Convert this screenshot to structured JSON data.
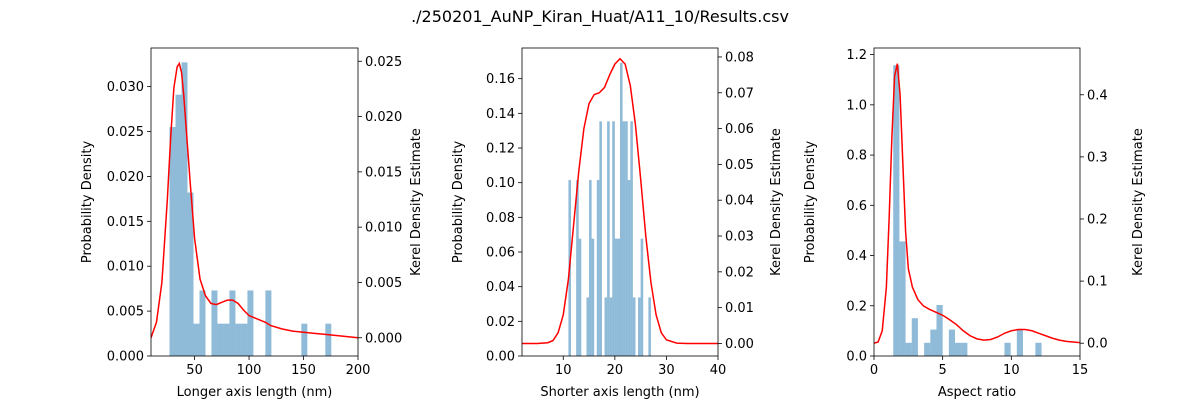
{
  "figure_title": "./250201_AuNP_Kiran_Huat/A11_10/Results.csv",
  "colors": {
    "hist": "#1f77b4",
    "hist_alpha": 0.5,
    "kde": "#ff0000",
    "axis": "#000000"
  },
  "chart_data": [
    {
      "type": "bar",
      "subtype": "histogram_with_kde",
      "xlabel": "Longer axis length (nm)",
      "ylabel": "Probability Density",
      "ylabel_right": "Kerel Density Estimate",
      "xlim": [
        10,
        200
      ],
      "ylim": [
        0,
        0.0343
      ],
      "ylim_right": [
        -0.00165,
        0.0262
      ],
      "xticks": [
        50,
        100,
        150,
        200
      ],
      "yticks": [
        0.0,
        0.005,
        0.01,
        0.015,
        0.02,
        0.025,
        0.03
      ],
      "yticks_right": [
        0.0,
        0.005,
        0.01,
        0.015,
        0.02,
        0.025
      ],
      "ytick_labels": [
        "0.000",
        "0.005",
        "0.010",
        "0.015",
        "0.020",
        "0.025",
        "0.030"
      ],
      "ytick_labels_right": [
        "0.000",
        "0.005",
        "0.010",
        "0.015",
        "0.020",
        "0.025"
      ],
      "bins": [
        {
          "x0": 27,
          "x1": 32.5,
          "y": 0.0255
        },
        {
          "x0": 32.5,
          "x1": 38,
          "y": 0.0291
        },
        {
          "x0": 38,
          "x1": 43.5,
          "y": 0.0327
        },
        {
          "x0": 43.5,
          "x1": 49,
          "y": 0.0182
        },
        {
          "x0": 49,
          "x1": 54.5,
          "y": 0.0036
        },
        {
          "x0": 54.5,
          "x1": 60,
          "y": 0.0073
        },
        {
          "x0": 65.5,
          "x1": 71,
          "y": 0.0073
        },
        {
          "x0": 71,
          "x1": 76.5,
          "y": 0.0036
        },
        {
          "x0": 76.5,
          "x1": 82,
          "y": 0.0036
        },
        {
          "x0": 82,
          "x1": 87.5,
          "y": 0.0073
        },
        {
          "x0": 87.5,
          "x1": 93,
          "y": 0.0036
        },
        {
          "x0": 93,
          "x1": 98.5,
          "y": 0.0036
        },
        {
          "x0": 98.5,
          "x1": 104,
          "y": 0.0073
        },
        {
          "x0": 115,
          "x1": 120.5,
          "y": 0.0073
        },
        {
          "x0": 148,
          "x1": 153.5,
          "y": 0.0036
        },
        {
          "x0": 170,
          "x1": 175.5,
          "y": 0.0036
        }
      ],
      "kde": {
        "x": [
          10,
          15,
          20,
          25,
          28,
          31,
          34,
          36,
          38,
          40,
          43,
          46,
          50,
          55,
          60,
          65,
          70,
          75,
          80,
          85,
          90,
          95,
          100,
          105,
          110,
          115,
          120,
          130,
          140,
          150,
          160,
          170,
          180,
          190,
          200
        ],
        "y": [
          0.0,
          0.0014,
          0.005,
          0.0125,
          0.018,
          0.0226,
          0.0245,
          0.0248,
          0.024,
          0.022,
          0.018,
          0.014,
          0.009,
          0.0053,
          0.0038,
          0.0031,
          0.003,
          0.0032,
          0.0034,
          0.0034,
          0.0031,
          0.0025,
          0.002,
          0.0018,
          0.0016,
          0.0014,
          0.0011,
          0.0008,
          0.0006,
          0.0005,
          0.0004,
          0.0003,
          0.0002,
          0.0001,
          0.0
        ]
      }
    },
    {
      "type": "bar",
      "subtype": "histogram_with_kde",
      "xlabel": "Shorter axis length (nm)",
      "ylabel": "Probability Density",
      "ylabel_right": "Kerel Density Estimate",
      "xlim": [
        2,
        40
      ],
      "ylim": [
        0,
        0.1777
      ],
      "ylim_right": [
        -0.0035,
        0.0825
      ],
      "xticks": [
        10,
        20,
        30,
        40
      ],
      "yticks": [
        0.0,
        0.02,
        0.04,
        0.06,
        0.08,
        0.1,
        0.12,
        0.14,
        0.16
      ],
      "yticks_right": [
        0.0,
        0.01,
        0.02,
        0.03,
        0.04,
        0.05,
        0.06,
        0.07,
        0.08
      ],
      "ytick_labels": [
        "0.00",
        "0.02",
        "0.04",
        "0.06",
        "0.08",
        "0.10",
        "0.12",
        "0.14",
        "0.16"
      ],
      "ytick_labels_right": [
        "0.00",
        "0.01",
        "0.02",
        "0.03",
        "0.04",
        "0.05",
        "0.06",
        "0.07",
        "0.08"
      ],
      "bins": [
        {
          "x0": 11.0,
          "x1": 11.5,
          "y": 0.1015
        },
        {
          "x0": 12.5,
          "x1": 13.0,
          "y": 0.1015
        },
        {
          "x0": 13.0,
          "x1": 13.5,
          "y": 0.0677
        },
        {
          "x0": 14.5,
          "x1": 15.0,
          "y": 0.0338
        },
        {
          "x0": 15.0,
          "x1": 15.5,
          "y": 0.1015
        },
        {
          "x0": 15.5,
          "x1": 16.0,
          "y": 0.0677
        },
        {
          "x0": 16.5,
          "x1": 17.0,
          "y": 0.1015
        },
        {
          "x0": 17.0,
          "x1": 17.5,
          "y": 0.1354
        },
        {
          "x0": 18.0,
          "x1": 18.5,
          "y": 0.0338
        },
        {
          "x0": 18.5,
          "x1": 19.0,
          "y": 0.1354
        },
        {
          "x0": 19.0,
          "x1": 19.5,
          "y": 0.0338
        },
        {
          "x0": 19.5,
          "x1": 20.0,
          "y": 0.1354
        },
        {
          "x0": 20.0,
          "x1": 20.5,
          "y": 0.0677
        },
        {
          "x0": 20.5,
          "x1": 21.0,
          "y": 0.0677
        },
        {
          "x0": 21.0,
          "x1": 21.5,
          "y": 0.1692
        },
        {
          "x0": 21.5,
          "x1": 22.0,
          "y": 0.1354
        },
        {
          "x0": 22.0,
          "x1": 22.5,
          "y": 0.1354
        },
        {
          "x0": 22.5,
          "x1": 23.0,
          "y": 0.1015
        },
        {
          "x0": 23.0,
          "x1": 23.5,
          "y": 0.1354
        },
        {
          "x0": 23.5,
          "x1": 24.0,
          "y": 0.0338
        },
        {
          "x0": 24.5,
          "x1": 25.0,
          "y": 0.0338
        },
        {
          "x0": 25.0,
          "x1": 25.5,
          "y": 0.0677
        },
        {
          "x0": 26.5,
          "x1": 27.0,
          "y": 0.0338
        }
      ],
      "kde": {
        "x": [
          2,
          5,
          7,
          8,
          9,
          10,
          11,
          12,
          13,
          14,
          15,
          16,
          17,
          18,
          19,
          20,
          21,
          22,
          23,
          24,
          25,
          26,
          27,
          28,
          29,
          30,
          32,
          34,
          36,
          38,
          40
        ],
        "y": [
          0.0,
          0.0,
          0.0002,
          0.0008,
          0.003,
          0.008,
          0.018,
          0.033,
          0.048,
          0.06,
          0.067,
          0.0695,
          0.07,
          0.0715,
          0.075,
          0.078,
          0.0795,
          0.078,
          0.072,
          0.061,
          0.046,
          0.03,
          0.017,
          0.008,
          0.003,
          0.001,
          0.0001,
          0.0,
          0.0,
          0.0,
          0.0
        ]
      }
    },
    {
      "type": "bar",
      "subtype": "histogram_with_kde",
      "xlabel": "Aspect ratio",
      "ylabel": "Probability Density",
      "ylabel_right": "Kerel Density Estimate",
      "xlim": [
        0,
        15
      ],
      "ylim": [
        0,
        1.2263
      ],
      "ylim_right": [
        -0.0206,
        0.4753
      ],
      "xticks": [
        0,
        5,
        10,
        15
      ],
      "yticks": [
        0.0,
        0.2,
        0.4,
        0.6,
        0.8,
        1.0,
        1.2
      ],
      "yticks_right": [
        0.0,
        0.1,
        0.2,
        0.3,
        0.4
      ],
      "ytick_labels": [
        "0.0",
        "0.2",
        "0.4",
        "0.6",
        "0.8",
        "1.0",
        "1.2"
      ],
      "ytick_labels_right": [
        "0.0",
        "0.1",
        "0.2",
        "0.3",
        "0.4"
      ],
      "bins": [
        {
          "x0": 1.4,
          "x1": 1.85,
          "y": 1.1579
        },
        {
          "x0": 1.85,
          "x1": 2.3,
          "y": 0.4561
        },
        {
          "x0": 2.3,
          "x1": 2.75,
          "y": 0.0526
        },
        {
          "x0": 2.75,
          "x1": 3.2,
          "y": 0.1504
        },
        {
          "x0": 3.65,
          "x1": 4.1,
          "y": 0.0526
        },
        {
          "x0": 4.1,
          "x1": 4.55,
          "y": 0.1053
        },
        {
          "x0": 4.55,
          "x1": 5.0,
          "y": 0.2031
        },
        {
          "x0": 5.45,
          "x1": 5.9,
          "y": 0.1053
        },
        {
          "x0": 5.9,
          "x1": 6.35,
          "y": 0.0526
        },
        {
          "x0": 6.35,
          "x1": 6.8,
          "y": 0.0526
        },
        {
          "x0": 9.5,
          "x1": 9.95,
          "y": 0.0526
        },
        {
          "x0": 10.4,
          "x1": 10.85,
          "y": 0.1053
        },
        {
          "x0": 11.75,
          "x1": 12.2,
          "y": 0.0526
        }
      ],
      "kde": {
        "x": [
          0,
          0.3,
          0.6,
          0.9,
          1.1,
          1.3,
          1.5,
          1.7,
          1.9,
          2.1,
          2.3,
          2.5,
          2.8,
          3.2,
          3.6,
          4.0,
          4.5,
          5.0,
          5.5,
          6.0,
          6.5,
          7.0,
          7.5,
          8.0,
          8.5,
          9.0,
          9.5,
          10.0,
          10.5,
          11.0,
          11.5,
          12.0,
          12.5,
          13.0,
          13.5,
          14.0,
          15.0
        ],
        "y": [
          0.0,
          0.002,
          0.02,
          0.09,
          0.2,
          0.33,
          0.43,
          0.45,
          0.4,
          0.29,
          0.18,
          0.12,
          0.09,
          0.07,
          0.06,
          0.055,
          0.05,
          0.045,
          0.038,
          0.03,
          0.02,
          0.012,
          0.007,
          0.005,
          0.006,
          0.01,
          0.016,
          0.02,
          0.022,
          0.022,
          0.02,
          0.016,
          0.012,
          0.008,
          0.005,
          0.003,
          0.001
        ]
      }
    }
  ]
}
